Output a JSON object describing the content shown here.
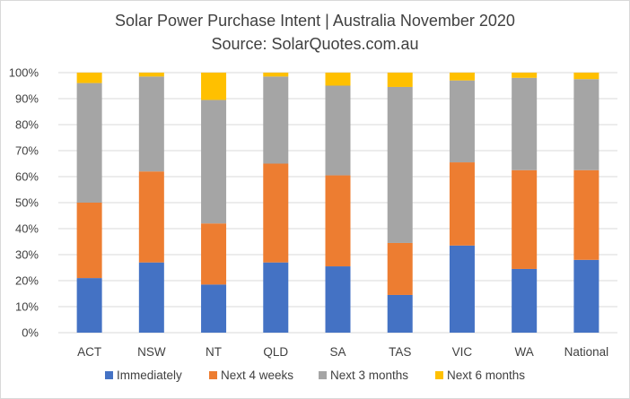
{
  "chart_data": {
    "type": "bar",
    "stacked": true,
    "title": "Solar Power Purchase Intent | Australia November 2020",
    "subtitle": "Source: SolarQuotes.com.au",
    "categories": [
      "ACT",
      "NSW",
      "NT",
      "QLD",
      "SA",
      "TAS",
      "VIC",
      "WA",
      "National"
    ],
    "y_ticks": [
      "0%",
      "10%",
      "20%",
      "30%",
      "40%",
      "50%",
      "60%",
      "70%",
      "80%",
      "90%",
      "100%"
    ],
    "ylim": [
      0,
      100
    ],
    "grid": true,
    "legend_position": "bottom",
    "series": [
      {
        "name": "Immediately",
        "color": "#4472C4",
        "values": [
          21,
          27,
          18.5,
          27,
          25.5,
          14.5,
          33.5,
          24.5,
          28
        ]
      },
      {
        "name": "Next 4 weeks",
        "color": "#ED7D31",
        "values": [
          29,
          35,
          23.5,
          38,
          35,
          20,
          32,
          38,
          34.5
        ]
      },
      {
        "name": "Next 3 months",
        "color": "#A5A5A5",
        "values": [
          46,
          36.5,
          47.5,
          33.5,
          34.5,
          60,
          31.5,
          35.5,
          35
        ]
      },
      {
        "name": "Next 6 months",
        "color": "#FFC000",
        "values": [
          4,
          1.5,
          10.5,
          1.5,
          5,
          5.5,
          3,
          2,
          2.5
        ]
      }
    ]
  }
}
